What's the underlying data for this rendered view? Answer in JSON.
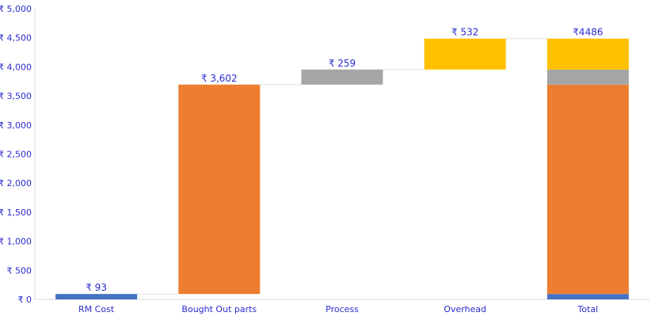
{
  "chart_data": {
    "type": "waterfall",
    "categories": [
      "RM Cost",
      "Bought Out parts",
      "Process",
      "Overhead",
      "Total"
    ],
    "values": [
      93,
      3602,
      259,
      532,
      4486
    ],
    "data_labels": [
      "₹ 93",
      "₹ 3,602",
      "₹ 259",
      "₹ 532",
      "₹4486"
    ],
    "total_composition": [
      93,
      3602,
      259,
      532
    ],
    "colors": [
      "#4472c4",
      "#ed7d31",
      "#a5a5a5",
      "#ffc000"
    ],
    "ylim": [
      0,
      5000
    ],
    "yticks": [
      0,
      500,
      1000,
      1500,
      2000,
      2500,
      3000,
      3500,
      4000,
      4500,
      5000
    ],
    "ytick_labels": [
      "₹ 0",
      "₹ 500",
      "₹ 1,000",
      "₹ 1,500",
      "₹ 2,000",
      "₹ 2,500",
      "₹ 3,000",
      "₹ 3,500",
      "₹ 4,000",
      "₹ 4,500",
      "₹ 5,000"
    ],
    "label_color": "#2b2bd0",
    "grid": false,
    "legend": "none"
  }
}
